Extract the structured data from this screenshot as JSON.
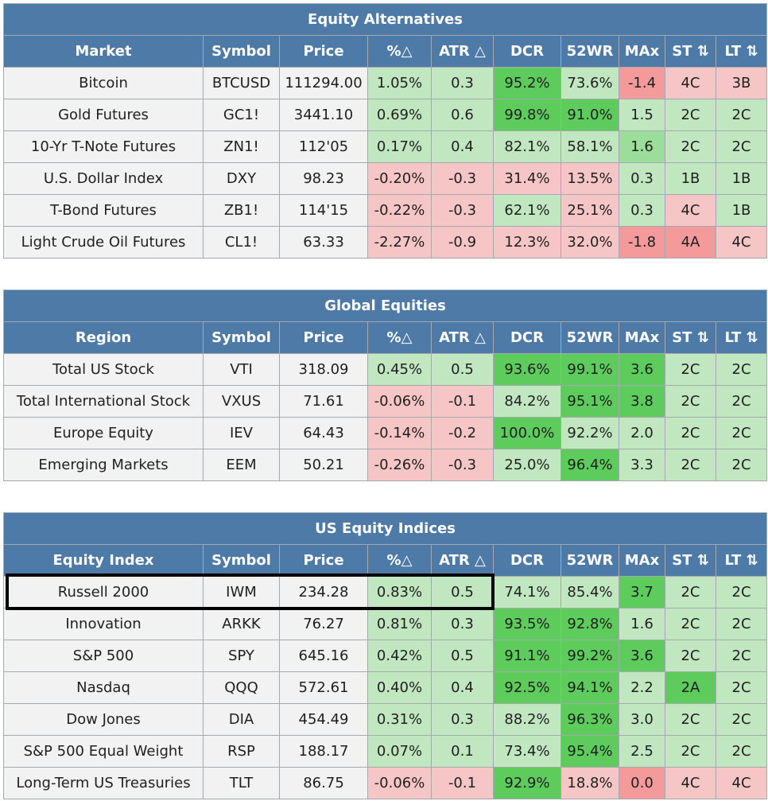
{
  "headers": [
    "Symbol",
    "Price",
    "%△",
    "ATR △",
    "DCR",
    "52WR",
    "MAx",
    "ST ⇅",
    "LT ⇅"
  ],
  "sections": [
    {
      "title": "Equity Alternatives",
      "first_col": "Market",
      "rows": [
        {
          "name": "Bitcoin",
          "symbol": "BTCUSD",
          "price": "111294.00",
          "pct": "1.05%",
          "atr": "0.3",
          "dcr": "95.2%",
          "wr52": "73.6%",
          "max": "-1.4",
          "st": "4C",
          "lt": "3B"
        },
        {
          "name": "Gold Futures",
          "symbol": "GC1!",
          "price": "3441.10",
          "pct": "0.69%",
          "atr": "0.6",
          "dcr": "99.8%",
          "wr52": "91.0%",
          "max": "1.5",
          "st": "2C",
          "lt": "2C"
        },
        {
          "name": "10-Yr T-Note Futures",
          "symbol": "ZN1!",
          "price": "112'05",
          "pct": "0.17%",
          "atr": "0.4",
          "dcr": "82.1%",
          "wr52": "58.1%",
          "max": "1.6",
          "st": "2C",
          "lt": "2C"
        },
        {
          "name": "U.S. Dollar Index",
          "symbol": "DXY",
          "price": "98.23",
          "pct": "-0.20%",
          "atr": "-0.3",
          "dcr": "31.4%",
          "wr52": "13.5%",
          "max": "0.3",
          "st": "1B",
          "lt": "1B"
        },
        {
          "name": "T-Bond Futures",
          "symbol": "ZB1!",
          "price": "114'15",
          "pct": "-0.22%",
          "atr": "-0.3",
          "dcr": "62.1%",
          "wr52": "25.1%",
          "max": "0.3",
          "st": "4C",
          "lt": "1B"
        },
        {
          "name": "Light Crude Oil Futures",
          "symbol": "CL1!",
          "price": "63.33",
          "pct": "-2.27%",
          "atr": "-0.9",
          "dcr": "12.3%",
          "wr52": "32.0%",
          "max": "-1.8",
          "st": "4A",
          "lt": "4C"
        }
      ]
    },
    {
      "title": "Global Equities",
      "first_col": "Region",
      "rows": [
        {
          "name": "Total US Stock",
          "symbol": "VTI",
          "price": "318.09",
          "pct": "0.45%",
          "atr": "0.5",
          "dcr": "93.6%",
          "wr52": "99.1%",
          "max": "3.6",
          "st": "2C",
          "lt": "2C"
        },
        {
          "name": "Total International Stock",
          "symbol": "VXUS",
          "price": "71.61",
          "pct": "-0.06%",
          "atr": "-0.1",
          "dcr": "84.2%",
          "wr52": "95.1%",
          "max": "3.8",
          "st": "2C",
          "lt": "2C"
        },
        {
          "name": "Europe Equity",
          "symbol": "IEV",
          "price": "64.43",
          "pct": "-0.14%",
          "atr": "-0.2",
          "dcr": "100.0%",
          "wr52": "92.2%",
          "max": "2.0",
          "st": "2C",
          "lt": "2C"
        },
        {
          "name": "Emerging Markets",
          "symbol": "EEM",
          "price": "50.21",
          "pct": "-0.26%",
          "atr": "-0.3",
          "dcr": "25.0%",
          "wr52": "96.4%",
          "max": "3.3",
          "st": "2C",
          "lt": "2C"
        }
      ]
    },
    {
      "title": "US Equity Indices",
      "first_col": "Equity Index",
      "rows": [
        {
          "name": "Russell 2000",
          "symbol": "IWM",
          "price": "234.28",
          "pct": "0.83%",
          "atr": "0.5",
          "dcr": "74.1%",
          "wr52": "85.4%",
          "max": "3.7",
          "st": "2C",
          "lt": "2C"
        },
        {
          "name": "Innovation",
          "symbol": "ARKK",
          "price": "76.27",
          "pct": "0.81%",
          "atr": "0.3",
          "dcr": "93.5%",
          "wr52": "92.8%",
          "max": "1.6",
          "st": "2C",
          "lt": "2C"
        },
        {
          "name": "S&P 500",
          "symbol": "SPY",
          "price": "645.16",
          "pct": "0.42%",
          "atr": "0.5",
          "dcr": "91.1%",
          "wr52": "99.2%",
          "max": "3.6",
          "st": "2C",
          "lt": "2C"
        },
        {
          "name": "Nasdaq",
          "symbol": "QQQ",
          "price": "572.61",
          "pct": "0.40%",
          "atr": "0.4",
          "dcr": "92.5%",
          "wr52": "94.1%",
          "max": "2.2",
          "st": "2A",
          "lt": "2C"
        },
        {
          "name": "Dow Jones",
          "symbol": "DIA",
          "price": "454.49",
          "pct": "0.31%",
          "atr": "0.3",
          "dcr": "88.2%",
          "wr52": "96.3%",
          "max": "3.0",
          "st": "2C",
          "lt": "2C"
        },
        {
          "name": "S&P 500 Equal Weight",
          "symbol": "RSP",
          "price": "188.17",
          "pct": "0.07%",
          "atr": "0.1",
          "dcr": "73.4%",
          "wr52": "95.4%",
          "max": "2.5",
          "st": "2C",
          "lt": "2C"
        },
        {
          "name": "Long-Term US Treasuries",
          "symbol": "TLT",
          "price": "86.75",
          "pct": "-0.06%",
          "atr": "-0.1",
          "dcr": "92.9%",
          "wr52": "18.8%",
          "max": "0.0",
          "st": "4C",
          "lt": "4C"
        }
      ]
    }
  ],
  "colors": {
    "header_bg": "#4d7aa6",
    "light_green": "#c1e7c1",
    "medium_green": "#9bdd9b",
    "dark_green": "#5dcc5d",
    "light_red": "#f6c6c6",
    "medium_red": "#f49a9a"
  },
  "highlighted_row": "Russell 2000"
}
